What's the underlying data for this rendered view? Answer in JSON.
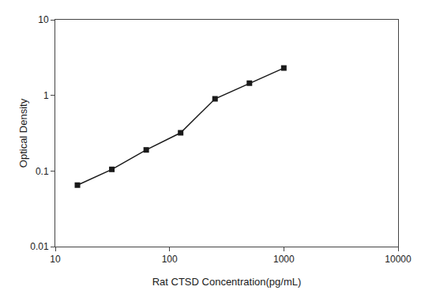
{
  "chart_data": {
    "type": "line",
    "xlabel": "Rat CTSD Concentration(pg/mL)",
    "ylabel": "Optical Density",
    "x": [
      15.625,
      31.25,
      62.5,
      125,
      250,
      500,
      1000
    ],
    "values": [
      0.065,
      0.105,
      0.19,
      0.32,
      0.9,
      1.45,
      2.3
    ],
    "xlim": [
      10,
      10000
    ],
    "ylim": [
      0.01,
      10
    ],
    "xticks": [
      10,
      100,
      1000,
      10000
    ],
    "yticks": [
      0.01,
      0.1,
      1,
      10
    ],
    "log": true,
    "grid": false,
    "color": "#1a1a1a",
    "marker": "square",
    "line_style": "solid"
  }
}
